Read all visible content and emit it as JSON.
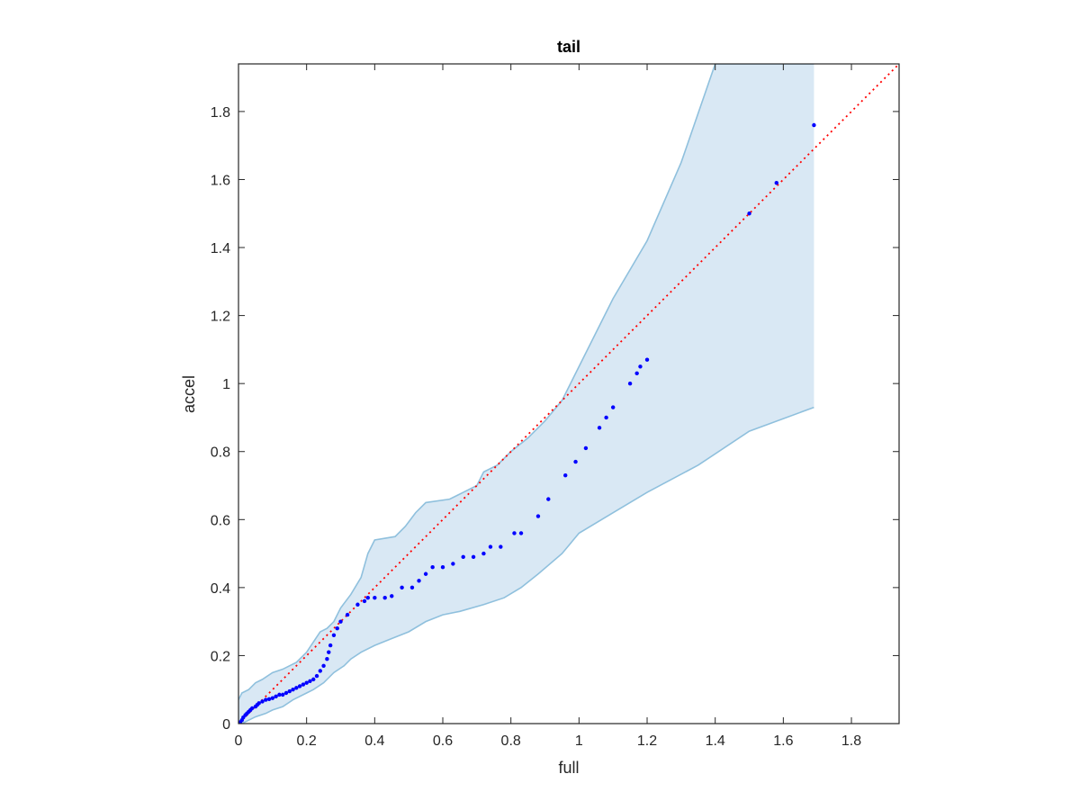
{
  "chart_data": {
    "type": "scatter",
    "title": "tail",
    "xlabel": "full",
    "ylabel": "accel",
    "xlim": [
      0,
      1.94
    ],
    "ylim": [
      0,
      1.94
    ],
    "xticks": [
      0,
      0.2,
      0.4,
      0.6,
      0.8,
      1,
      1.2,
      1.4,
      1.6,
      1.8
    ],
    "yticks": [
      0,
      0.2,
      0.4,
      0.6,
      0.8,
      1,
      1.2,
      1.4,
      1.6,
      1.8
    ],
    "xtick_labels": [
      "0",
      "0.2",
      "0.4",
      "0.6",
      "0.8",
      "1",
      "1.2",
      "1.4",
      "1.6",
      "1.8"
    ],
    "ytick_labels": [
      "0",
      "0.2",
      "0.4",
      "0.6",
      "0.8",
      "1",
      "1.2",
      "1.4",
      "1.6",
      "1.8"
    ],
    "grid": false,
    "colors": {
      "points": "#0000ff",
      "reference_line": "#ff0000",
      "band_fill": "#d9e8f4",
      "band_edge": "#8fc0dd",
      "axes": "#262626"
    },
    "reference_line": {
      "style": "dotted",
      "points": [
        [
          0,
          0
        ],
        [
          1.94,
          1.94
        ]
      ]
    },
    "band_upper": [
      [
        0,
        0.07
      ],
      [
        0.01,
        0.09
      ],
      [
        0.03,
        0.1
      ],
      [
        0.05,
        0.12
      ],
      [
        0.07,
        0.13
      ],
      [
        0.1,
        0.15
      ],
      [
        0.13,
        0.16
      ],
      [
        0.17,
        0.18
      ],
      [
        0.2,
        0.21
      ],
      [
        0.22,
        0.24
      ],
      [
        0.24,
        0.27
      ],
      [
        0.26,
        0.28
      ],
      [
        0.28,
        0.3
      ],
      [
        0.3,
        0.34
      ],
      [
        0.33,
        0.38
      ],
      [
        0.36,
        0.43
      ],
      [
        0.38,
        0.5
      ],
      [
        0.4,
        0.54
      ],
      [
        0.46,
        0.55
      ],
      [
        0.49,
        0.58
      ],
      [
        0.52,
        0.62
      ],
      [
        0.55,
        0.65
      ],
      [
        0.62,
        0.66
      ],
      [
        0.66,
        0.68
      ],
      [
        0.7,
        0.7
      ],
      [
        0.72,
        0.74
      ],
      [
        0.76,
        0.76
      ],
      [
        0.8,
        0.8
      ],
      [
        0.85,
        0.84
      ],
      [
        0.9,
        0.89
      ],
      [
        0.95,
        0.95
      ],
      [
        1.0,
        1.05
      ],
      [
        1.05,
        1.15
      ],
      [
        1.1,
        1.25
      ],
      [
        1.2,
        1.42
      ],
      [
        1.3,
        1.65
      ],
      [
        1.4,
        1.94
      ],
      [
        1.69,
        1.94
      ]
    ],
    "band_lower": [
      [
        0.01,
        0
      ],
      [
        0.03,
        0.01
      ],
      [
        0.05,
        0.02
      ],
      [
        0.08,
        0.03
      ],
      [
        0.1,
        0.04
      ],
      [
        0.13,
        0.05
      ],
      [
        0.16,
        0.07
      ],
      [
        0.2,
        0.09
      ],
      [
        0.22,
        0.1
      ],
      [
        0.25,
        0.12
      ],
      [
        0.28,
        0.15
      ],
      [
        0.31,
        0.17
      ],
      [
        0.33,
        0.19
      ],
      [
        0.36,
        0.21
      ],
      [
        0.4,
        0.23
      ],
      [
        0.45,
        0.25
      ],
      [
        0.5,
        0.27
      ],
      [
        0.55,
        0.3
      ],
      [
        0.6,
        0.32
      ],
      [
        0.65,
        0.33
      ],
      [
        0.72,
        0.35
      ],
      [
        0.78,
        0.37
      ],
      [
        0.83,
        0.4
      ],
      [
        0.88,
        0.44
      ],
      [
        0.95,
        0.5
      ],
      [
        1.0,
        0.56
      ],
      [
        1.1,
        0.62
      ],
      [
        1.2,
        0.68
      ],
      [
        1.35,
        0.76
      ],
      [
        1.5,
        0.86
      ],
      [
        1.69,
        0.93
      ]
    ],
    "points": [
      [
        0,
        0
      ],
      [
        0.005,
        0.004
      ],
      [
        0.01,
        0.01
      ],
      [
        0.014,
        0.018
      ],
      [
        0.02,
        0.025
      ],
      [
        0.025,
        0.03
      ],
      [
        0.03,
        0.035
      ],
      [
        0.035,
        0.04
      ],
      [
        0.04,
        0.045
      ],
      [
        0.05,
        0.05
      ],
      [
        0.055,
        0.055
      ],
      [
        0.06,
        0.06
      ],
      [
        0.07,
        0.065
      ],
      [
        0.08,
        0.07
      ],
      [
        0.09,
        0.072
      ],
      [
        0.1,
        0.075
      ],
      [
        0.11,
        0.08
      ],
      [
        0.12,
        0.085
      ],
      [
        0.13,
        0.085
      ],
      [
        0.14,
        0.09
      ],
      [
        0.15,
        0.095
      ],
      [
        0.16,
        0.1
      ],
      [
        0.17,
        0.105
      ],
      [
        0.18,
        0.11
      ],
      [
        0.19,
        0.115
      ],
      [
        0.2,
        0.12
      ],
      [
        0.21,
        0.125
      ],
      [
        0.22,
        0.13
      ],
      [
        0.23,
        0.14
      ],
      [
        0.24,
        0.155
      ],
      [
        0.25,
        0.17
      ],
      [
        0.26,
        0.19
      ],
      [
        0.265,
        0.21
      ],
      [
        0.27,
        0.23
      ],
      [
        0.28,
        0.26
      ],
      [
        0.29,
        0.28
      ],
      [
        0.3,
        0.3
      ],
      [
        0.32,
        0.32
      ],
      [
        0.35,
        0.35
      ],
      [
        0.37,
        0.36
      ],
      [
        0.38,
        0.37
      ],
      [
        0.4,
        0.37
      ],
      [
        0.43,
        0.37
      ],
      [
        0.45,
        0.375
      ],
      [
        0.48,
        0.4
      ],
      [
        0.51,
        0.4
      ],
      [
        0.53,
        0.42
      ],
      [
        0.55,
        0.44
      ],
      [
        0.57,
        0.46
      ],
      [
        0.6,
        0.46
      ],
      [
        0.63,
        0.47
      ],
      [
        0.66,
        0.49
      ],
      [
        0.69,
        0.49
      ],
      [
        0.72,
        0.5
      ],
      [
        0.74,
        0.52
      ],
      [
        0.77,
        0.52
      ],
      [
        0.81,
        0.56
      ],
      [
        0.83,
        0.56
      ],
      [
        0.88,
        0.61
      ],
      [
        0.91,
        0.66
      ],
      [
        0.96,
        0.73
      ],
      [
        0.99,
        0.77
      ],
      [
        1.02,
        0.81
      ],
      [
        1.06,
        0.87
      ],
      [
        1.08,
        0.9
      ],
      [
        1.1,
        0.93
      ],
      [
        1.15,
        1.0
      ],
      [
        1.17,
        1.03
      ],
      [
        1.18,
        1.05
      ],
      [
        1.2,
        1.07
      ],
      [
        1.5,
        1.5
      ],
      [
        1.58,
        1.59
      ],
      [
        1.69,
        1.76
      ]
    ]
  }
}
